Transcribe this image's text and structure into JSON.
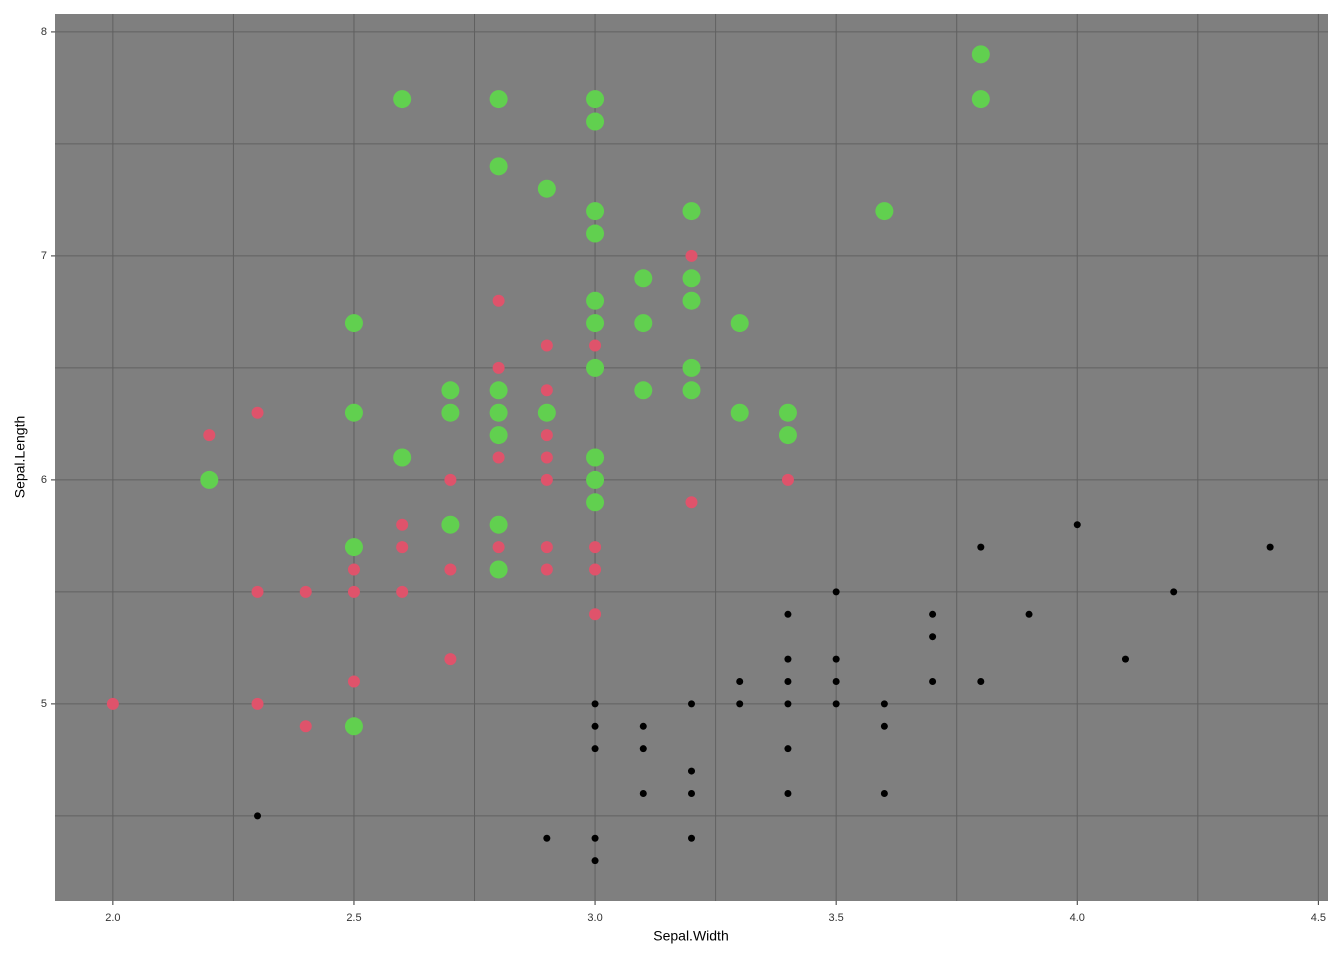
{
  "chart_data": {
    "type": "scatter",
    "x_label": "Sepal.Width",
    "y_label": "Sepal.Length",
    "xlim": [
      1.88,
      4.52
    ],
    "ylim": [
      4.12,
      8.08
    ],
    "xticks": [
      {
        "value": 2,
        "label": "2.0"
      },
      {
        "value": 2.5,
        "label": "2.5"
      },
      {
        "value": 3,
        "label": "3.0"
      },
      {
        "value": 3.5,
        "label": "3.5"
      },
      {
        "value": 4,
        "label": "4.0"
      },
      {
        "value": 4.5,
        "label": "4.5"
      }
    ],
    "yticks": [
      5,
      6,
      7,
      8
    ],
    "x_minor_grid": [
      2.25,
      2.75,
      3.25,
      3.75,
      4.25
    ],
    "y_minor_grid": [
      4.5,
      5.5,
      6.5,
      7.5
    ],
    "grid": true,
    "panel_color": "#7f7f7f",
    "grid_color": "#606060",
    "series": [
      {
        "color": "#000000",
        "x": [
          2.3,
          2.9,
          3.0,
          3.0,
          3.2,
          3.1,
          3.2,
          3.4,
          3.6,
          3.2,
          3.0,
          3.1,
          3.4,
          3.0,
          3.1,
          3.6,
          3.0,
          3.2,
          3.3,
          3.4,
          3.5,
          3.6,
          3.3,
          3.4,
          3.5,
          3.7,
          3.8,
          3.4,
          3.5,
          4.1,
          3.7,
          3.4,
          3.7,
          3.9,
          3.5,
          4.2,
          3.8,
          4.4,
          4.0
        ],
        "values": [
          4.5,
          4.4,
          4.4,
          4.3,
          4.4,
          4.6,
          4.6,
          4.6,
          4.6,
          4.7,
          4.8,
          4.8,
          4.8,
          4.9,
          4.9,
          4.9,
          5.0,
          5.0,
          5.0,
          5.0,
          5.0,
          5.0,
          5.1,
          5.1,
          5.1,
          5.1,
          5.1,
          5.2,
          5.2,
          5.2,
          5.3,
          5.4,
          5.4,
          5.4,
          5.5,
          5.5,
          5.7,
          5.7,
          5.8
        ]
      },
      {
        "color": "#df536b",
        "x": [
          2.0,
          2.2,
          2.3,
          2.3,
          2.3,
          2.4,
          2.4,
          2.5,
          2.5,
          2.5,
          2.6,
          2.6,
          2.6,
          2.7,
          2.7,
          2.7,
          2.8,
          2.8,
          2.8,
          2.8,
          2.9,
          2.9,
          2.9,
          2.9,
          2.9,
          2.9,
          2.9,
          3.0,
          3.0,
          3.0,
          3.0,
          3.2,
          3.2,
          3.4
        ],
        "values": [
          5.0,
          6.2,
          6.3,
          5.5,
          5.0,
          5.5,
          4.9,
          5.6,
          5.5,
          5.1,
          5.8,
          5.7,
          5.5,
          6.0,
          5.6,
          5.2,
          6.8,
          6.5,
          6.1,
          5.7,
          6.6,
          6.4,
          6.2,
          6.1,
          6.0,
          5.7,
          5.6,
          6.6,
          5.7,
          5.6,
          5.4,
          7.0,
          5.9,
          6.0
        ]
      },
      {
        "color": "#61d04f",
        "x": [
          2.2,
          2.5,
          2.5,
          2.5,
          2.5,
          2.6,
          2.6,
          2.7,
          2.7,
          2.7,
          2.8,
          2.8,
          2.8,
          2.8,
          2.8,
          2.8,
          2.8,
          2.9,
          2.9,
          3.0,
          3.0,
          3.0,
          3.0,
          3.0,
          3.0,
          3.0,
          3.0,
          3.0,
          3.0,
          3.1,
          3.1,
          3.1,
          3.2,
          3.2,
          3.2,
          3.2,
          3.2,
          3.3,
          3.3,
          3.4,
          3.4,
          3.6,
          3.8,
          3.8
        ],
        "values": [
          6.0,
          6.7,
          6.3,
          5.7,
          4.9,
          7.7,
          6.1,
          6.4,
          6.3,
          5.8,
          7.7,
          7.4,
          6.4,
          6.3,
          6.2,
          5.8,
          5.6,
          7.3,
          6.3,
          7.7,
          7.6,
          7.2,
          7.1,
          6.8,
          6.7,
          6.5,
          6.1,
          6.0,
          5.9,
          6.9,
          6.7,
          6.4,
          7.2,
          6.9,
          6.8,
          6.5,
          6.4,
          6.7,
          6.3,
          6.3,
          6.2,
          7.2,
          7.9,
          7.7
        ]
      }
    ]
  }
}
